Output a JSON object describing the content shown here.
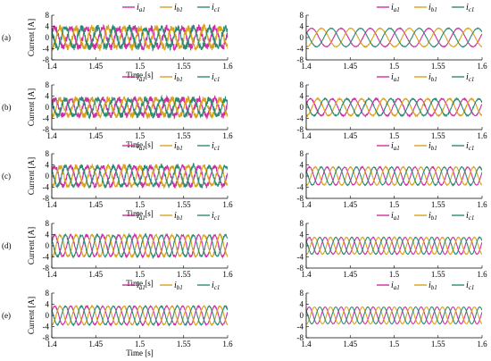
{
  "colors": {
    "ia": "#cc2fa0",
    "ib": "#d9a21a",
    "ic": "#2c8a74",
    "axis": "#000000"
  },
  "legend": [
    {
      "letter": "i",
      "sub": "a1",
      "color": "#cc2fa0"
    },
    {
      "letter": "i",
      "sub": "b1",
      "color": "#d9a21a"
    },
    {
      "letter": "i",
      "sub": "c1",
      "color": "#2c8a74"
    }
  ],
  "rows": [
    {
      "label": "(a)"
    },
    {
      "label": "(b)"
    },
    {
      "label": "(c)"
    },
    {
      "label": "(d)"
    },
    {
      "label": "(e)"
    }
  ],
  "chart_data": [
    {
      "type": "line",
      "panel": "a-left",
      "ylabel": "Current [A]",
      "xlabel": "Time [s]",
      "xlim": [
        1.4,
        1.6
      ],
      "ylim": [
        -8,
        8
      ],
      "xticks": [
        "1.4",
        "1.45",
        "1.5",
        "1.55",
        "1.6"
      ],
      "yticks": [
        "8",
        "4",
        "0",
        "-4",
        "-8"
      ],
      "amplitude": 3.5,
      "cycles": 11,
      "noise": 1.2,
      "series": [
        {
          "name": "ia1"
        },
        {
          "name": "ib1"
        },
        {
          "name": "ic1"
        }
      ]
    },
    {
      "type": "line",
      "panel": "a-right",
      "ylabel": "",
      "xlabel": "",
      "xlim": [
        1.4,
        1.6
      ],
      "ylim": [
        -8,
        8
      ],
      "xticks": [
        "1.4",
        "1.45",
        "1.5",
        "1.55",
        "1.6"
      ],
      "yticks": [
        "8",
        "4",
        "0",
        "-4",
        "-8"
      ],
      "amplitude": 3.3,
      "cycles": 6,
      "noise": 0.1,
      "series": [
        {
          "name": "ia1"
        },
        {
          "name": "ib1"
        },
        {
          "name": "ic1"
        }
      ]
    },
    {
      "type": "line",
      "panel": "b-left",
      "ylabel": "Current [A]",
      "xlabel": "Time [s]",
      "xlim": [
        1.4,
        1.6
      ],
      "ylim": [
        -8,
        8
      ],
      "xticks": [
        "1.4",
        "1.45",
        "1.5",
        "1.55",
        "1.6"
      ],
      "yticks": [
        "8",
        "4",
        "0",
        "-4",
        "-8"
      ],
      "amplitude": 3.0,
      "cycles": 11,
      "noise": 1.0,
      "series": [
        {
          "name": "ia1"
        },
        {
          "name": "ib1"
        },
        {
          "name": "ic1"
        }
      ]
    },
    {
      "type": "line",
      "panel": "b-right",
      "ylabel": "",
      "xlabel": "",
      "xlim": [
        1.4,
        1.6
      ],
      "ylim": [
        -8,
        8
      ],
      "xticks": [
        "1.4",
        "1.45",
        "1.5",
        "1.55",
        "1.6"
      ],
      "yticks": [
        "8",
        "4",
        "0",
        "-4",
        "-8"
      ],
      "amplitude": 3.0,
      "cycles": 8,
      "noise": 0.2,
      "series": [
        {
          "name": "ia1"
        },
        {
          "name": "ib1"
        },
        {
          "name": "ic1"
        }
      ]
    },
    {
      "type": "line",
      "panel": "c-left",
      "ylabel": "Current [A]",
      "xlabel": "Time [s]",
      "xlim": [
        1.4,
        1.6
      ],
      "ylim": [
        -8,
        8
      ],
      "xticks": [
        "1.4",
        "1.45",
        "1.5",
        "1.55",
        "1.6"
      ],
      "yticks": [
        "8",
        "4",
        "0",
        "-4",
        "-8"
      ],
      "amplitude": 3.5,
      "cycles": 11,
      "noise": 0.8,
      "series": [
        {
          "name": "ia1"
        },
        {
          "name": "ib1"
        },
        {
          "name": "ic1"
        }
      ]
    },
    {
      "type": "line",
      "panel": "c-right",
      "ylabel": "",
      "xlabel": "",
      "xlim": [
        1.4,
        1.6
      ],
      "ylim": [
        -8,
        8
      ],
      "xticks": [
        "1.4",
        "1.45",
        "1.5",
        "1.55",
        "1.6"
      ],
      "yticks": [
        "8",
        "4",
        "0",
        "-4",
        "-8"
      ],
      "amplitude": 3.2,
      "cycles": 10,
      "noise": 0.15,
      "series": [
        {
          "name": "ia1"
        },
        {
          "name": "ib1"
        },
        {
          "name": "ic1"
        }
      ]
    },
    {
      "type": "line",
      "panel": "d-left",
      "ylabel": "Current [A]",
      "xlabel": "Time [s]",
      "xlim": [
        1.4,
        1.6
      ],
      "ylim": [
        -8,
        8
      ],
      "xticks": [
        "1.4",
        "1.45",
        "1.5",
        "1.55",
        "1.6"
      ],
      "yticks": [
        "8",
        "4",
        "0",
        "-4",
        "-8"
      ],
      "amplitude": 3.8,
      "cycles": 11,
      "noise": 0.35,
      "series": [
        {
          "name": "ia1"
        },
        {
          "name": "ib1"
        },
        {
          "name": "ic1"
        }
      ]
    },
    {
      "type": "line",
      "panel": "d-right",
      "ylabel": "",
      "xlabel": "",
      "xlim": [
        1.4,
        1.6
      ],
      "ylim": [
        -8,
        8
      ],
      "xticks": [
        "1.4",
        "1.45",
        "1.5",
        "1.55",
        "1.6"
      ],
      "yticks": [
        "8",
        "4",
        "0",
        "-4",
        "-8"
      ],
      "amplitude": 3.0,
      "cycles": 11,
      "noise": 0.1,
      "series": [
        {
          "name": "ia1"
        },
        {
          "name": "ib1"
        },
        {
          "name": "ic1"
        }
      ]
    },
    {
      "type": "line",
      "panel": "e-left",
      "ylabel": "Current [A]",
      "xlabel": "Time [s]",
      "xlim": [
        1.4,
        1.6
      ],
      "ylim": [
        -8,
        8
      ],
      "xticks": [
        "1.4",
        "1.45",
        "1.5",
        "1.55",
        "1.6"
      ],
      "yticks": [
        "8",
        "4",
        "0",
        "-4",
        "-8"
      ],
      "amplitude": 3.3,
      "cycles": 11,
      "noise": 0.2,
      "series": [
        {
          "name": "ia1"
        },
        {
          "name": "ib1"
        },
        {
          "name": "ic1"
        }
      ]
    },
    {
      "type": "line",
      "panel": "e-right",
      "ylabel": "",
      "xlabel": "",
      "xlim": [
        1.4,
        1.6
      ],
      "ylim": [
        -8,
        8
      ],
      "xticks": [
        "1.4",
        "1.45",
        "1.5",
        "1.55",
        "1.6"
      ],
      "yticks": [
        "8",
        "4",
        "0",
        "-4",
        "-8"
      ],
      "amplitude": 3.0,
      "cycles": 11,
      "noise": 0.05,
      "series": [
        {
          "name": "ia1"
        },
        {
          "name": "ib1"
        },
        {
          "name": "ic1"
        }
      ]
    }
  ]
}
